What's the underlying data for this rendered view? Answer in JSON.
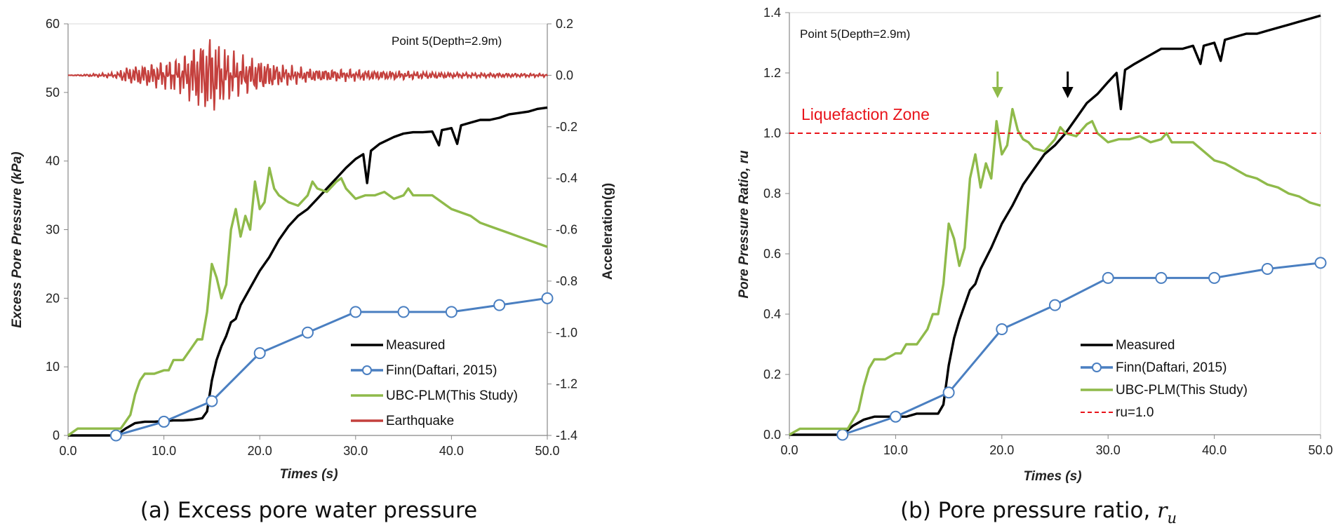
{
  "chart_data": [
    {
      "type": "line",
      "id": "a",
      "caption": "(a) Excess pore water pressure",
      "annotation": "Point 5(Depth=2.9m)",
      "xlabel": "Times (s)",
      "ylabel": "Excess Pore Pressure (kPa)",
      "y2label": "Acceleration(g)",
      "xlim": [
        0,
        50
      ],
      "ylim": [
        0,
        60
      ],
      "y2lim": [
        -1.4,
        0.2
      ],
      "xticks": [
        "0.0",
        "10.0",
        "20.0",
        "30.0",
        "40.0",
        "50.0"
      ],
      "yticks": [
        "0",
        "10",
        "20",
        "30",
        "40",
        "50",
        "60"
      ],
      "y2ticks": [
        "-1.4",
        "-1.2",
        "-1.0",
        "-0.8",
        "-0.6",
        "-0.4",
        "-0.2",
        "0.0",
        "0.2"
      ],
      "legend_position": "bottom-right",
      "series": [
        {
          "name": "Measured",
          "color": "#000000",
          "marker": "none",
          "x": [
            0,
            5,
            6,
            7,
            8,
            9,
            10,
            11,
            12,
            13,
            14,
            14.5,
            15,
            15.5,
            16,
            16.5,
            17,
            17.5,
            18,
            19,
            20,
            21,
            22,
            23,
            24,
            25,
            26,
            27,
            28,
            29,
            30,
            30.8,
            31.2,
            31.6,
            32.5,
            34,
            35,
            36,
            37,
            38,
            38.7,
            39,
            40,
            40.6,
            41,
            42,
            43,
            44,
            45,
            46,
            47,
            48,
            49,
            50
          ],
          "values": [
            0,
            0,
            1,
            1.8,
            2,
            2,
            2.1,
            2.2,
            2.2,
            2.3,
            2.5,
            3.5,
            8,
            11,
            13,
            14.5,
            16.5,
            17,
            19,
            21.5,
            24,
            26,
            28.5,
            30.5,
            32,
            33,
            34.5,
            36,
            37.5,
            39,
            40.3,
            41,
            36.8,
            41.5,
            42.5,
            43.5,
            44,
            44.2,
            44.2,
            44.3,
            42.3,
            44.5,
            44.8,
            42.5,
            45.2,
            45.6,
            46,
            46,
            46.3,
            46.8,
            47,
            47.2,
            47.6,
            47.8
          ]
        },
        {
          "name": "Finn(Daftari, 2015)",
          "color": "#4a7fc1",
          "marker": "circle",
          "x": [
            5,
            10,
            15,
            20,
            25,
            30,
            35,
            40,
            45,
            50
          ],
          "values": [
            0,
            2,
            5,
            12,
            15,
            18,
            18,
            18,
            19,
            20
          ]
        },
        {
          "name": "UBC-PLM(This Study)",
          "color": "#8fba4a",
          "marker": "none",
          "x": [
            0,
            1,
            2,
            3,
            4,
            5,
            5.5,
            6,
            6.5,
            7,
            7.5,
            8,
            9,
            10,
            10.5,
            11,
            12,
            13,
            13.5,
            14,
            14.5,
            15,
            15.5,
            16,
            16.5,
            17,
            17.5,
            18,
            18.5,
            19,
            19.5,
            20,
            20.5,
            21,
            21.5,
            22,
            22.5,
            23,
            24,
            25,
            25.5,
            26,
            27,
            28,
            28.5,
            29,
            30,
            31,
            32,
            33,
            34,
            35,
            35.5,
            36,
            37,
            38,
            39,
            40,
            41,
            42,
            43,
            44,
            45,
            46,
            47,
            48,
            49,
            50
          ],
          "values": [
            0,
            1,
            1,
            1,
            1,
            1,
            1,
            2,
            3,
            6,
            8,
            9,
            9,
            9.5,
            9.5,
            11,
            11,
            13,
            14,
            14,
            18,
            25,
            23,
            20,
            22,
            30,
            33,
            29,
            32,
            30,
            37,
            33,
            34,
            39,
            36,
            35,
            34.5,
            34,
            33.5,
            35,
            37,
            36,
            35.5,
            37,
            37.5,
            36,
            34.5,
            35,
            35,
            35.5,
            34.5,
            35,
            36,
            35,
            35,
            35,
            34,
            33,
            32.5,
            32,
            31,
            30.5,
            30,
            29.5,
            29,
            28.5,
            28,
            27.5
          ]
        },
        {
          "name": "Earthquake",
          "color": "#c4403d",
          "marker": "none",
          "axis": "y2",
          "note": "acceleration time history (g); oscillation plotted from amplitude envelope",
          "envelope_t": [
            0,
            5,
            6,
            8,
            10,
            12,
            13.5,
            15,
            16,
            18,
            20,
            22,
            25,
            30,
            35,
            40,
            45,
            50
          ],
          "envelope_amp": [
            0,
            0.01,
            0.03,
            0.04,
            0.05,
            0.07,
            0.12,
            0.15,
            0.11,
            0.07,
            0.06,
            0.04,
            0.025,
            0.02,
            0.015,
            0.01,
            0.008,
            0.006
          ]
        }
      ]
    },
    {
      "type": "line",
      "id": "b",
      "caption_text": "(b) Pore pressure ratio, ",
      "caption_symbol": "ru",
      "annotation": "Point 5(Depth=2.9m)",
      "zone_label": "Liquefaction Zone",
      "xlabel": "Times (s)",
      "ylabel": "Pore Pressure Ratio, ru",
      "xlim": [
        0,
        50
      ],
      "ylim": [
        0,
        1.4
      ],
      "xticks": [
        "0.0",
        "10.0",
        "20.0",
        "30.0",
        "40.0",
        "50.0"
      ],
      "yticks": [
        "0.0",
        "0.2",
        "0.4",
        "0.6",
        "0.8",
        "1.0",
        "1.2",
        "1.4"
      ],
      "legend_position": "bottom-right",
      "arrows": [
        {
          "x": 19.6,
          "color": "#8fba4a"
        },
        {
          "x": 26.2,
          "color": "#000000"
        }
      ],
      "series": [
        {
          "name": "Measured",
          "color": "#000000",
          "marker": "none",
          "x": [
            0,
            5,
            6,
            7,
            8,
            9,
            10,
            11,
            12,
            13,
            14,
            14.5,
            15,
            15.5,
            16,
            16.5,
            17,
            17.5,
            18,
            19,
            20,
            21,
            22,
            23,
            24,
            25,
            26,
            27,
            28,
            29,
            30,
            30.8,
            31.2,
            31.6,
            32.5,
            34,
            35,
            36,
            37,
            38,
            38.7,
            39,
            40,
            40.6,
            41,
            42,
            43,
            44,
            45,
            46,
            47,
            48,
            49,
            50
          ],
          "values": [
            0,
            0,
            0.03,
            0.05,
            0.06,
            0.06,
            0.06,
            0.06,
            0.07,
            0.07,
            0.07,
            0.1,
            0.23,
            0.32,
            0.38,
            0.43,
            0.48,
            0.5,
            0.55,
            0.62,
            0.7,
            0.76,
            0.83,
            0.88,
            0.93,
            0.96,
            1.0,
            1.05,
            1.1,
            1.13,
            1.17,
            1.2,
            1.08,
            1.21,
            1.23,
            1.26,
            1.28,
            1.28,
            1.28,
            1.29,
            1.23,
            1.29,
            1.3,
            1.24,
            1.31,
            1.32,
            1.33,
            1.33,
            1.34,
            1.35,
            1.36,
            1.37,
            1.38,
            1.39
          ]
        },
        {
          "name": "Finn(Daftari, 2015)",
          "color": "#4a7fc1",
          "marker": "circle",
          "x": [
            5,
            10,
            15,
            20,
            25,
            30,
            35,
            40,
            45,
            50
          ],
          "values": [
            0,
            0.06,
            0.14,
            0.35,
            0.43,
            0.52,
            0.52,
            0.52,
            0.55,
            0.57
          ]
        },
        {
          "name": "UBC-PLM(This Study)",
          "color": "#8fba4a",
          "marker": "none",
          "x": [
            0,
            1,
            2,
            3,
            4,
            5,
            5.5,
            6,
            6.5,
            7,
            7.5,
            8,
            9,
            10,
            10.5,
            11,
            12,
            13,
            13.5,
            14,
            14.5,
            15,
            15.5,
            16,
            16.5,
            17,
            17.5,
            18,
            18.5,
            19,
            19.5,
            20,
            20.5,
            21,
            21.5,
            22,
            22.5,
            23,
            24,
            25,
            25.5,
            26,
            27,
            28,
            28.5,
            29,
            30,
            31,
            32,
            33,
            34,
            35,
            35.5,
            36,
            37,
            38,
            39,
            40,
            41,
            42,
            43,
            44,
            45,
            46,
            47,
            48,
            49,
            50
          ],
          "values": [
            0,
            0.02,
            0.02,
            0.02,
            0.02,
            0.02,
            0.02,
            0.05,
            0.08,
            0.16,
            0.22,
            0.25,
            0.25,
            0.27,
            0.27,
            0.3,
            0.3,
            0.35,
            0.4,
            0.4,
            0.5,
            0.7,
            0.65,
            0.56,
            0.62,
            0.85,
            0.93,
            0.82,
            0.9,
            0.85,
            1.04,
            0.93,
            0.96,
            1.08,
            1.01,
            0.98,
            0.97,
            0.95,
            0.94,
            0.98,
            1.02,
            1.0,
            0.99,
            1.03,
            1.04,
            1.0,
            0.97,
            0.98,
            0.98,
            0.99,
            0.97,
            0.98,
            1.0,
            0.97,
            0.97,
            0.97,
            0.94,
            0.91,
            0.9,
            0.88,
            0.86,
            0.85,
            0.83,
            0.82,
            0.8,
            0.79,
            0.77,
            0.76
          ]
        },
        {
          "name": "ru=1.0",
          "color": "#e8141b",
          "dashed": true,
          "marker": "none",
          "x": [
            0,
            50
          ],
          "values": [
            1.0,
            1.0
          ]
        }
      ]
    }
  ]
}
